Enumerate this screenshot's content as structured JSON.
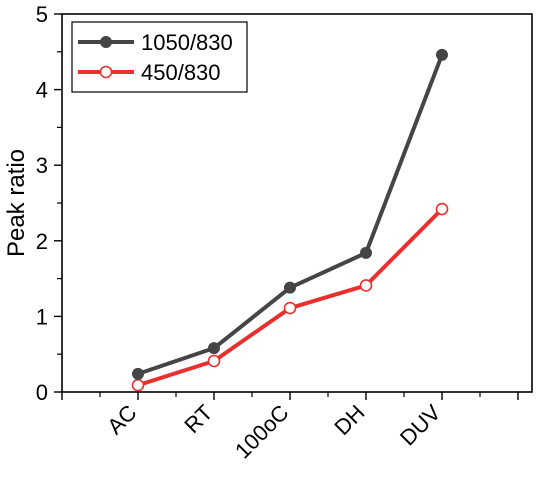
{
  "chart_data": {
    "type": "line",
    "title": "",
    "xlabel": "",
    "ylabel": "Peak ratio",
    "ylim": [
      0,
      5
    ],
    "yticks": [
      "0",
      "1",
      "2",
      "3",
      "4",
      "5"
    ],
    "categories": [
      "AC",
      "RT",
      "100oC",
      "DH",
      "DUV"
    ],
    "series": [
      {
        "name": "1050/830",
        "color": "#454545",
        "marker": "filled-circle",
        "values": [
          0.24,
          0.58,
          1.38,
          1.84,
          4.46
        ]
      },
      {
        "name": "450/830",
        "color": "#e8302f",
        "marker": "open-circle",
        "values": [
          0.09,
          0.41,
          1.11,
          1.41,
          2.42
        ]
      }
    ],
    "grid": false,
    "legend_position": "top-left"
  }
}
